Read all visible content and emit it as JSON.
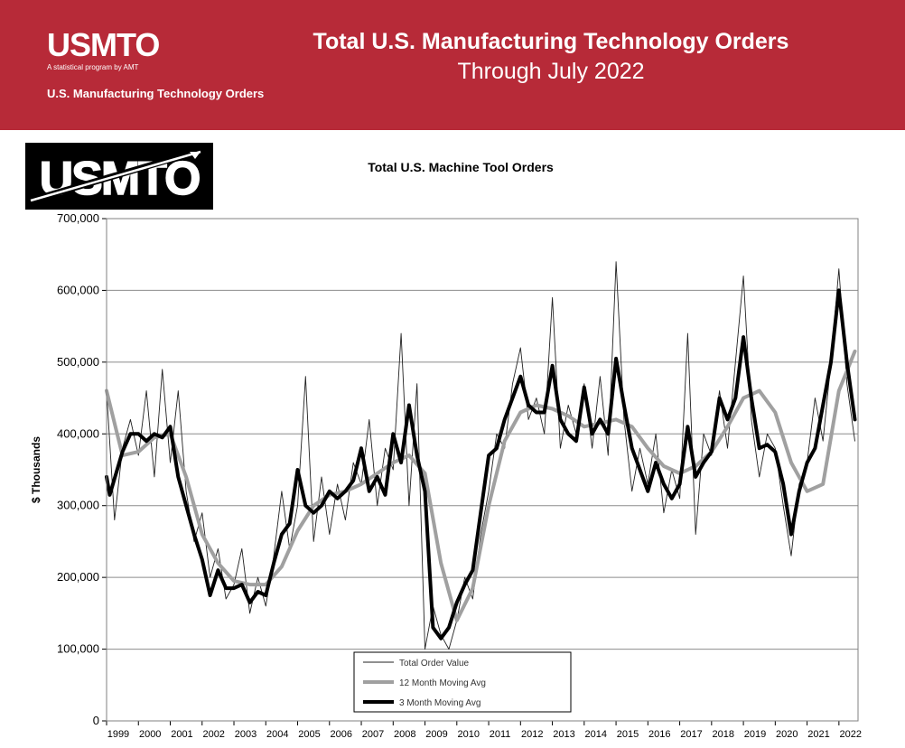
{
  "header": {
    "logo_text": "USMTO",
    "logo_tagline": "A statistical program by AMT",
    "subtitle": "U.S. Manufacturing Technology Orders",
    "title_line1": "Total U.S. Manufacturing Technology Orders",
    "title_line2": "Through July 2022",
    "brand_color": "#b72a38"
  },
  "chart_data": {
    "type": "line",
    "title": "Total U.S. Machine Tool Orders",
    "ylabel": "$ Thousands",
    "xlabel": "",
    "ylim": [
      0,
      700000
    ],
    "yticks": [
      "0",
      "100,000",
      "200,000",
      "300,000",
      "400,000",
      "500,000",
      "600,000",
      "700,000"
    ],
    "x_range": [
      1999.0,
      2022.6
    ],
    "xticks": [
      "1999",
      "2000",
      "2001",
      "2002",
      "2003",
      "2004",
      "2005",
      "2006",
      "2007",
      "2008",
      "2009",
      "2010",
      "2011",
      "2012",
      "2013",
      "2014",
      "2015",
      "2016",
      "2017",
      "2018",
      "2019",
      "2020",
      "2021",
      "2022"
    ],
    "grid": "horizontal",
    "legend_position": "bottom-center",
    "series": [
      {
        "name": "Total Order Value",
        "style": "thin",
        "color": "#000000",
        "x": [
          1999.0,
          1999.25,
          1999.5,
          1999.75,
          2000.0,
          2000.25,
          2000.5,
          2000.75,
          2001.0,
          2001.25,
          2001.5,
          2001.75,
          2002.0,
          2002.25,
          2002.5,
          2002.75,
          2003.0,
          2003.25,
          2003.5,
          2003.75,
          2004.0,
          2004.25,
          2004.5,
          2004.75,
          2005.0,
          2005.25,
          2005.5,
          2005.75,
          2006.0,
          2006.25,
          2006.5,
          2006.75,
          2007.0,
          2007.25,
          2007.5,
          2007.75,
          2008.0,
          2008.25,
          2008.5,
          2008.75,
          2009.0,
          2009.25,
          2009.5,
          2009.75,
          2010.0,
          2010.25,
          2010.5,
          2010.75,
          2011.0,
          2011.25,
          2011.5,
          2011.75,
          2012.0,
          2012.25,
          2012.5,
          2012.75,
          2013.0,
          2013.25,
          2013.5,
          2013.75,
          2014.0,
          2014.25,
          2014.5,
          2014.75,
          2015.0,
          2015.25,
          2015.5,
          2015.75,
          2016.0,
          2016.25,
          2016.5,
          2016.75,
          2017.0,
          2017.25,
          2017.5,
          2017.75,
          2018.0,
          2018.25,
          2018.5,
          2018.75,
          2019.0,
          2019.25,
          2019.5,
          2019.75,
          2020.0,
          2020.25,
          2020.5,
          2020.75,
          2021.0,
          2021.25,
          2021.5,
          2021.75,
          2022.0,
          2022.25,
          2022.5
        ],
        "values": [
          460000,
          280000,
          380000,
          420000,
          370000,
          460000,
          340000,
          490000,
          360000,
          460000,
          320000,
          250000,
          290000,
          200000,
          240000,
          170000,
          190000,
          240000,
          150000,
          200000,
          160000,
          230000,
          320000,
          240000,
          300000,
          480000,
          250000,
          340000,
          260000,
          330000,
          280000,
          360000,
          330000,
          420000,
          300000,
          380000,
          350000,
          540000,
          300000,
          470000,
          100000,
          160000,
          120000,
          100000,
          140000,
          200000,
          170000,
          260000,
          320000,
          400000,
          380000,
          470000,
          520000,
          420000,
          450000,
          400000,
          590000,
          380000,
          440000,
          400000,
          470000,
          380000,
          480000,
          370000,
          640000,
          420000,
          320000,
          380000,
          330000,
          400000,
          290000,
          350000,
          310000,
          540000,
          260000,
          400000,
          370000,
          460000,
          380000,
          500000,
          620000,
          420000,
          340000,
          400000,
          380000,
          300000,
          230000,
          330000,
          360000,
          450000,
          390000,
          500000,
          630000,
          470000,
          390000
        ]
      },
      {
        "name": "12 Month Moving Avg",
        "style": "gray",
        "color": "#999999",
        "x": [
          1999.0,
          1999.5,
          2000.0,
          2000.5,
          2001.0,
          2001.5,
          2002.0,
          2002.5,
          2003.0,
          2003.5,
          2004.0,
          2004.5,
          2005.0,
          2005.5,
          2006.0,
          2006.5,
          2007.0,
          2007.5,
          2008.0,
          2008.5,
          2009.0,
          2009.5,
          2010.0,
          2010.5,
          2011.0,
          2011.5,
          2012.0,
          2012.5,
          2013.0,
          2013.5,
          2014.0,
          2014.5,
          2015.0,
          2015.5,
          2016.0,
          2016.5,
          2017.0,
          2017.5,
          2018.0,
          2018.5,
          2019.0,
          2019.5,
          2020.0,
          2020.5,
          2021.0,
          2021.5,
          2022.0,
          2022.5
        ],
        "values": [
          460000,
          370000,
          375000,
          395000,
          400000,
          340000,
          260000,
          220000,
          195000,
          190000,
          190000,
          215000,
          265000,
          300000,
          315000,
          320000,
          330000,
          345000,
          360000,
          370000,
          345000,
          220000,
          140000,
          185000,
          300000,
          390000,
          430000,
          440000,
          435000,
          425000,
          410000,
          415000,
          420000,
          410000,
          380000,
          355000,
          345000,
          355000,
          375000,
          410000,
          450000,
          460000,
          430000,
          360000,
          320000,
          330000,
          460000,
          515000
        ]
      },
      {
        "name": "3 Month Moving Avg",
        "style": "bold",
        "color": "#000000",
        "x": [
          1999.0,
          1999.1,
          1999.5,
          1999.75,
          2000.0,
          2000.25,
          2000.5,
          2000.75,
          2001.0,
          2001.25,
          2001.5,
          2001.75,
          2002.0,
          2002.25,
          2002.5,
          2002.75,
          2003.0,
          2003.25,
          2003.5,
          2003.75,
          2004.0,
          2004.25,
          2004.5,
          2004.75,
          2005.0,
          2005.25,
          2005.5,
          2005.75,
          2006.0,
          2006.25,
          2006.5,
          2006.75,
          2007.0,
          2007.25,
          2007.5,
          2007.75,
          2008.0,
          2008.25,
          2008.5,
          2008.75,
          2009.0,
          2009.25,
          2009.5,
          2009.75,
          2010.0,
          2010.25,
          2010.5,
          2010.75,
          2011.0,
          2011.25,
          2011.5,
          2011.75,
          2012.0,
          2012.25,
          2012.5,
          2012.75,
          2013.0,
          2013.25,
          2013.5,
          2013.75,
          2014.0,
          2014.25,
          2014.5,
          2014.75,
          2015.0,
          2015.25,
          2015.5,
          2015.75,
          2016.0,
          2016.25,
          2016.5,
          2016.75,
          2017.0,
          2017.25,
          2017.5,
          2017.75,
          2018.0,
          2018.25,
          2018.5,
          2018.75,
          2019.0,
          2019.25,
          2019.5,
          2019.75,
          2020.0,
          2020.25,
          2020.5,
          2020.75,
          2021.0,
          2021.25,
          2021.5,
          2021.75,
          2022.0,
          2022.25,
          2022.5
        ],
        "values": [
          340000,
          315000,
          375000,
          400000,
          400000,
          390000,
          400000,
          395000,
          410000,
          340000,
          300000,
          260000,
          225000,
          175000,
          210000,
          185000,
          185000,
          190000,
          165000,
          180000,
          175000,
          220000,
          260000,
          275000,
          350000,
          300000,
          290000,
          300000,
          320000,
          310000,
          320000,
          335000,
          380000,
          320000,
          340000,
          315000,
          400000,
          360000,
          440000,
          370000,
          320000,
          130000,
          115000,
          130000,
          165000,
          190000,
          210000,
          290000,
          370000,
          380000,
          420000,
          450000,
          480000,
          440000,
          430000,
          430000,
          495000,
          420000,
          400000,
          390000,
          465000,
          400000,
          420000,
          400000,
          505000,
          440000,
          380000,
          350000,
          320000,
          360000,
          330000,
          310000,
          330000,
          410000,
          340000,
          360000,
          375000,
          450000,
          420000,
          450000,
          535000,
          450000,
          380000,
          385000,
          375000,
          330000,
          260000,
          320000,
          360000,
          380000,
          440000,
          500000,
          600000,
          500000,
          420000
        ]
      }
    ]
  }
}
